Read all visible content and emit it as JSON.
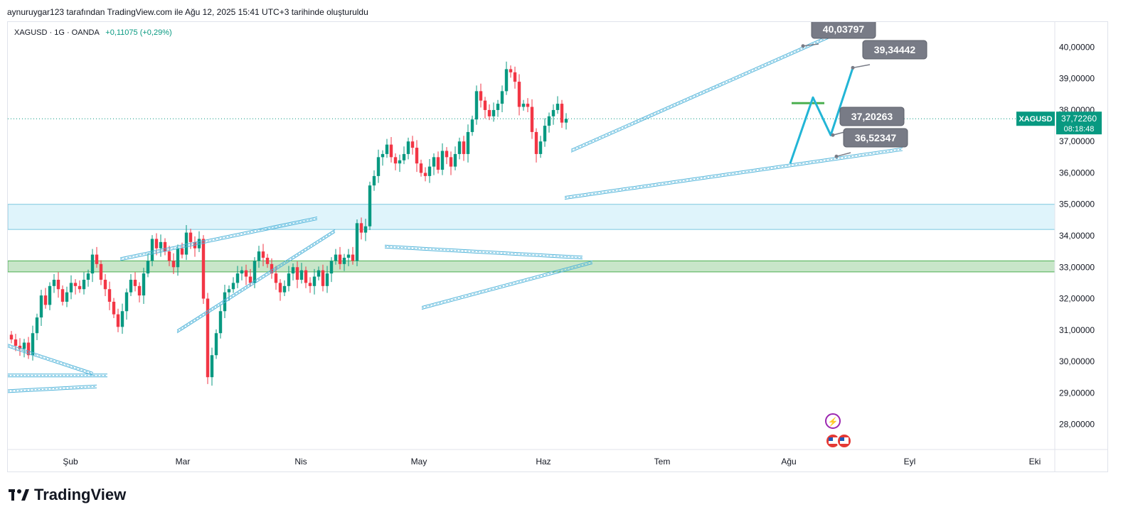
{
  "header": {
    "caption": "aynuruygar123 tarafından TradingView.com ile Ağu 12, 2025 15:41 UTC+3 tarihinde oluşturuldu"
  },
  "legend": {
    "symbol_info": "XAGUSD · 1G · OANDA",
    "change": "+0,11075 (+0,29%)"
  },
  "brand": {
    "name": "TradingView",
    "logo_text": "17"
  },
  "price_badge": {
    "symbol": "XAGUSD",
    "price": "37,72260",
    "countdown": "08:18:48"
  },
  "colors": {
    "up": "#089981",
    "down": "#f23645",
    "channel": "#4fb3d9",
    "blue_zone": "#dff4fb",
    "green_zone": "#c8e6c9",
    "projection": "#22b5d6",
    "callout": "#787b86",
    "badge": "#089981"
  },
  "chart_data": {
    "type": "candlestick",
    "title": "",
    "xlabel": "",
    "ylabel": "",
    "ylim": [
      27.2,
      40.8
    ],
    "x_ticks": [
      "Şub",
      "Mar",
      "Nis",
      "May",
      "Haz",
      "Tem",
      "Ağu",
      "Eyl",
      "Eki"
    ],
    "y_ticks": [
      "28,00000",
      "29,00000",
      "30,00000",
      "31,00000",
      "32,00000",
      "33,00000",
      "34,00000",
      "35,00000",
      "36,00000",
      "37,00000",
      "38,00000",
      "39,00000",
      "40,00000"
    ],
    "y_tick_values": [
      28,
      29,
      30,
      31,
      32,
      33,
      34,
      35,
      36,
      37,
      38,
      39,
      40
    ],
    "last_price": 37.7226,
    "closes": [
      30.7,
      30.5,
      30.4,
      30.6,
      30.2,
      30.9,
      31.4,
      32.1,
      31.8,
      32.4,
      32.6,
      32.3,
      31.9,
      32.2,
      32.5,
      32.4,
      32.3,
      32.6,
      32.8,
      33.4,
      33.1,
      32.6,
      32.3,
      31.9,
      31.5,
      31.1,
      31.6,
      32.2,
      32.6,
      32.4,
      32.1,
      32.8,
      33.2,
      33.9,
      33.6,
      33.8,
      33.5,
      33.2,
      33.0,
      33.6,
      33.4,
      34.1,
      33.8,
      33.6,
      33.9,
      32.0,
      29.5,
      30.2,
      30.9,
      31.6,
      32.2,
      32.3,
      32.5,
      32.8,
      32.9,
      32.7,
      32.5,
      33.2,
      33.5,
      33.3,
      33.1,
      32.8,
      32.5,
      32.2,
      32.4,
      32.8,
      33.0,
      32.6,
      32.9,
      32.5,
      32.4,
      32.7,
      32.9,
      32.4,
      32.8,
      33.2,
      33.4,
      33.1,
      33.3,
      33.4,
      33.2,
      34.4,
      34.1,
      34.3,
      35.6,
      35.9,
      36.5,
      36.6,
      36.9,
      36.5,
      36.3,
      36.4,
      36.6,
      37.0,
      36.8,
      36.3,
      36.0,
      35.9,
      36.2,
      36.5,
      36.1,
      36.7,
      36.5,
      36.2,
      36.6,
      37.0,
      36.6,
      37.3,
      37.7,
      38.6,
      38.3,
      38.0,
      37.8,
      38.0,
      38.2,
      38.6,
      39.3,
      39.2,
      38.9,
      38.1,
      38.2,
      38.1,
      37.3,
      36.6,
      37.0,
      37.5,
      37.8,
      38.0,
      38.2,
      37.6,
      37.72
    ],
    "lines": {
      "ascending_channel": [
        [
          "2025-06-05",
          36.8
        ],
        [
          "2025-08-18",
          40.5
        ]
      ],
      "rising_support": [
        [
          "2025-06-05",
          35.3
        ],
        [
          "2025-08-25",
          36.9
        ]
      ]
    },
    "zones": [
      {
        "name": "blue",
        "low": 34.2,
        "high": 35.0
      },
      {
        "name": "green",
        "low": 32.85,
        "high": 33.2
      }
    ],
    "annotations": [
      {
        "text": "40,03797",
        "value": 40.03797
      },
      {
        "text": "39,34442",
        "value": 39.34442
      },
      {
        "text": "37,20263",
        "value": 37.20263
      },
      {
        "text": "36,52347",
        "value": 36.52347
      }
    ],
    "projection": [
      36.3,
      38.4,
      37.2,
      39.34
    ],
    "grid": true
  }
}
